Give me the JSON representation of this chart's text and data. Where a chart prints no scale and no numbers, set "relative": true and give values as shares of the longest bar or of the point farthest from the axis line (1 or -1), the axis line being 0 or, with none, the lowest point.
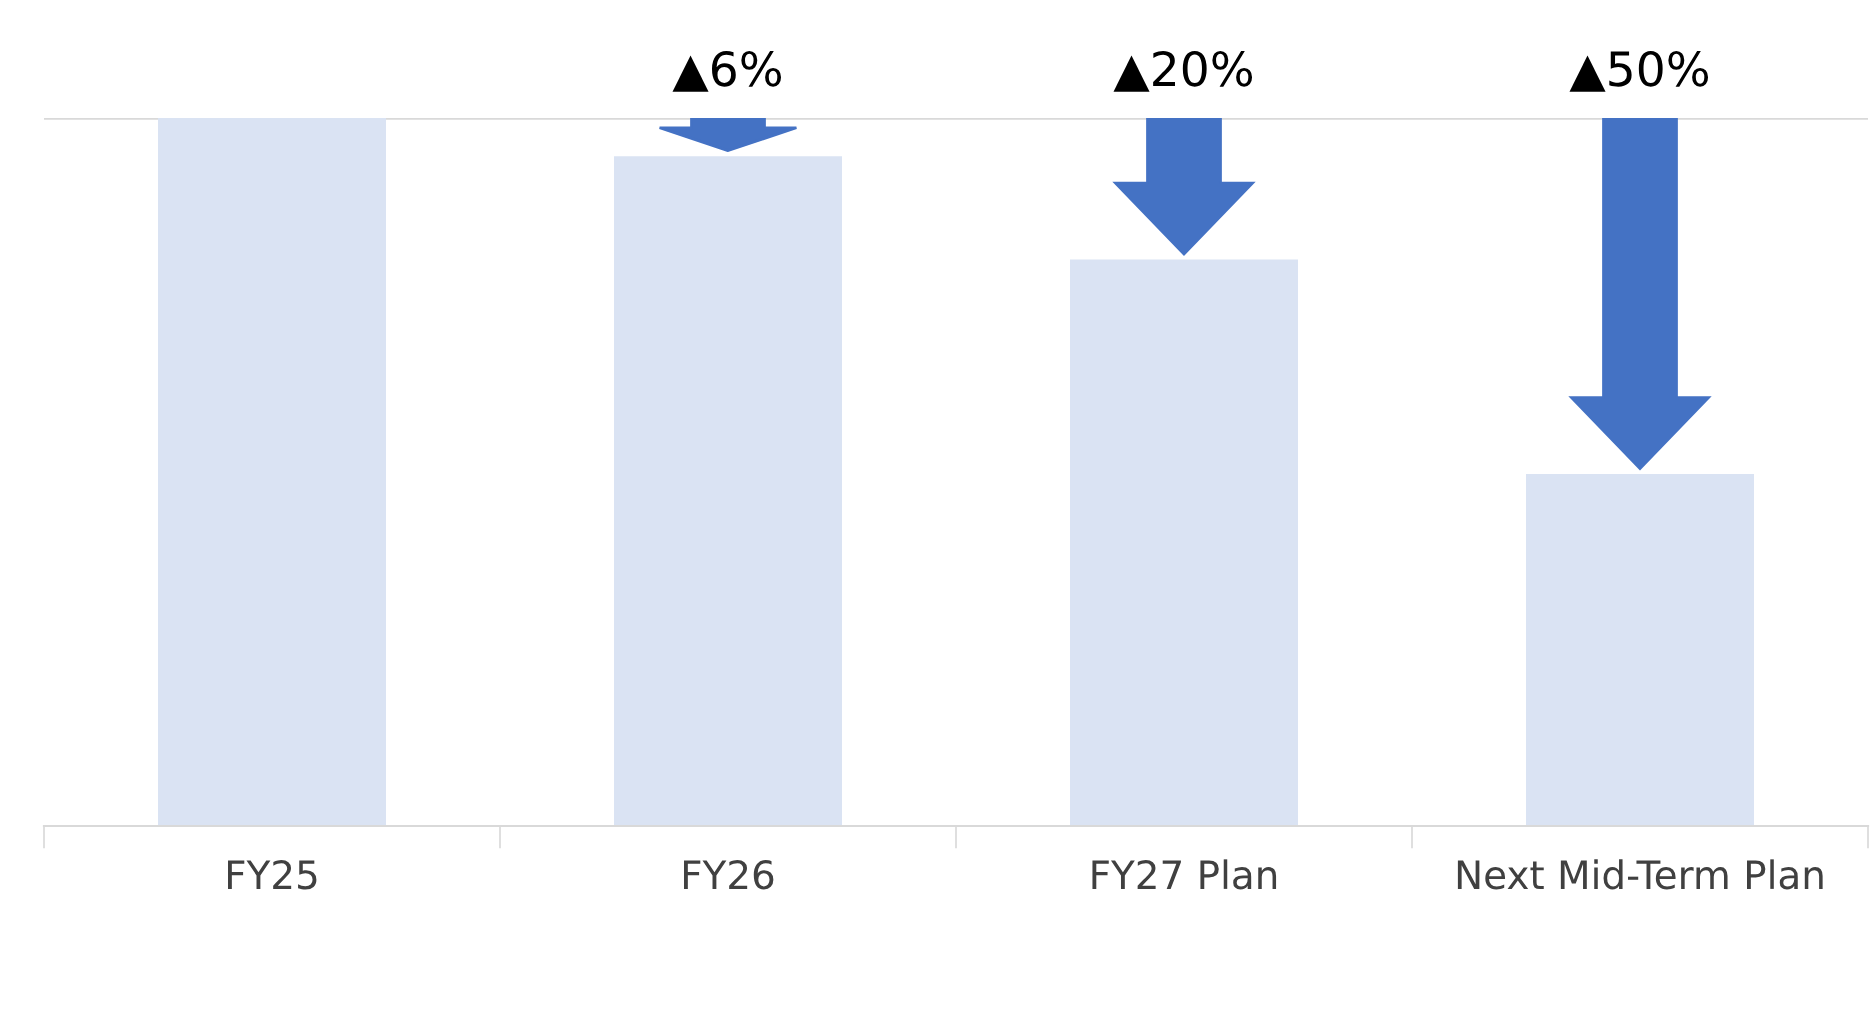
{
  "chart_data": {
    "type": "bar",
    "relative": true,
    "categories": [
      "FY25",
      "FY26",
      "FY27 Plan",
      "Next Mid-Term Plan"
    ],
    "values": [
      1,
      0.946,
      0.8,
      0.497
    ],
    "color": "#dae3f3",
    "ref_lines": [
      {
        "axis": "y",
        "value": 1,
        "color": "#d9d9d9"
      }
    ],
    "annotations": [
      {
        "text": "▲6%",
        "x": "FY26",
        "y": 1
      },
      {
        "text": "▲20%",
        "x": "FY27 Plan",
        "y": 1
      },
      {
        "text": "▲50%",
        "x": "Next Mid-Term Plan",
        "y": 1
      }
    ]
  }
}
